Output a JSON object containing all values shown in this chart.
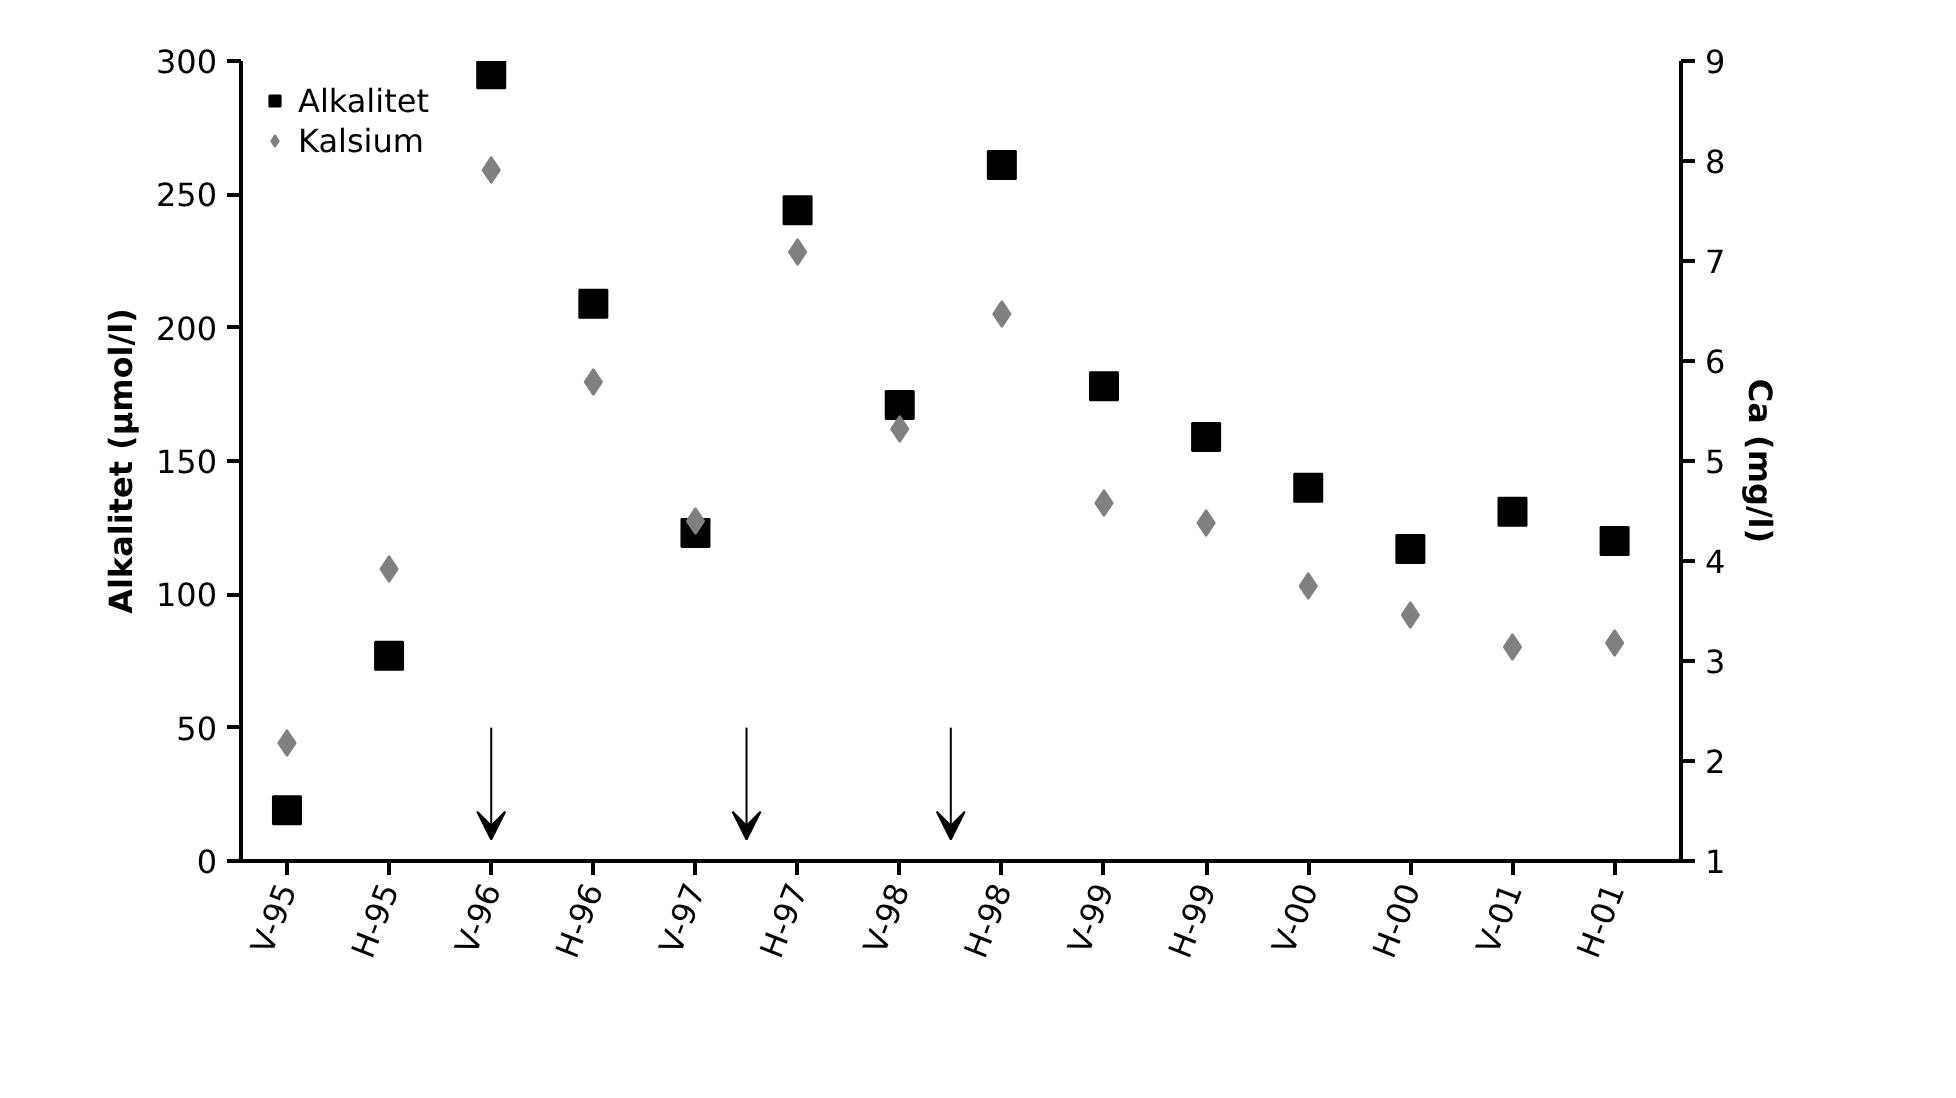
{
  "chart_data": {
    "type": "scatter",
    "ylabel": "Alkalitet (µmol/l)",
    "y2label": "Ca (mg/l)",
    "categories": [
      "V-95",
      "H-95",
      "V-96",
      "H-96",
      "V-97",
      "H-97",
      "V-98",
      "H-98",
      "V-99",
      "H-99",
      "V-00",
      "H-00",
      "V-01",
      "H-01"
    ],
    "series": [
      {
        "name": "Alkalitet",
        "color": "#000000",
        "marker": "square",
        "values": [
          19,
          77,
          295,
          209,
          123,
          244,
          171,
          261,
          178,
          159,
          140,
          117,
          131,
          120
        ]
      },
      {
        "name": "Kalsium",
        "color": "#808080",
        "marker": "diamond",
        "axis": "y2",
        "values": [
          2.18,
          3.92,
          7.91,
          5.79,
          4.4,
          7.09,
          5.32,
          6.47,
          4.58,
          4.38,
          3.75,
          3.46,
          3.14,
          3.18
        ]
      }
    ],
    "ylim": [
      0,
      300
    ],
    "yticks": [
      0,
      50,
      100,
      150,
      200,
      250,
      300
    ],
    "y2lim": [
      1,
      9
    ],
    "y2ticks": [
      1,
      2,
      3,
      4,
      5,
      6,
      7,
      8,
      9
    ],
    "grid": false,
    "legend": "top left"
  }
}
